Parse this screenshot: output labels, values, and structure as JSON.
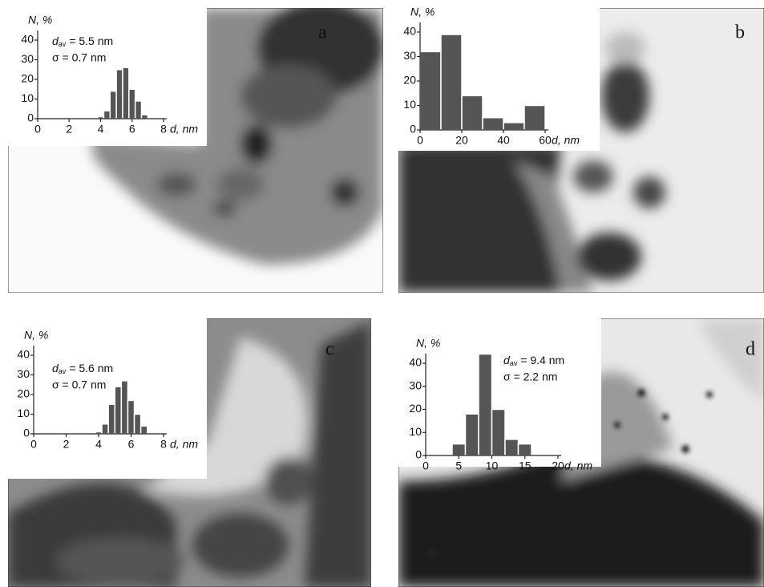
{
  "chart_data": [
    {
      "type": "histogram",
      "panel": "a",
      "ylabel": "N, %",
      "xlabel": "d, nm",
      "annotation": {
        "symbol": "d",
        "subscript": "av",
        "mean": "= 5.5 nm",
        "sigma": "σ = 0.7 nm"
      },
      "bins": [
        3.8,
        4.2,
        4.6,
        5.0,
        5.4,
        5.8,
        6.2,
        6.6,
        7.0
      ],
      "values": [
        1,
        4,
        14,
        25,
        26,
        15,
        9,
        2
      ],
      "color": "#555555",
      "xlim": [
        0,
        8
      ],
      "xticks": [
        0,
        2,
        4,
        6,
        8
      ],
      "ylim": [
        0,
        40
      ],
      "yticks": [
        0,
        10,
        20,
        30,
        40
      ]
    },
    {
      "type": "histogram",
      "panel": "b",
      "ylabel": "N, %",
      "xlabel": "d, nm",
      "bins": [
        0,
        10,
        20,
        30,
        40,
        50,
        60
      ],
      "values": [
        32,
        39,
        14,
        5,
        3,
        10
      ],
      "color": "#555555",
      "xlim": [
        0,
        60
      ],
      "xticks": [
        0,
        20,
        40,
        60
      ],
      "ylim": [
        0,
        40
      ],
      "yticks": [
        0,
        10,
        20,
        30,
        40
      ]
    },
    {
      "type": "histogram",
      "panel": "c",
      "ylabel": "N, %",
      "xlabel": "d, nm",
      "annotation": {
        "symbol": "d",
        "subscript": "av",
        "mean": "= 5.6 nm",
        "sigma": "σ = 0.7 nm"
      },
      "bins": [
        3.8,
        4.2,
        4.6,
        5.0,
        5.4,
        5.8,
        6.2,
        6.6,
        7.0
      ],
      "values": [
        1,
        5,
        15,
        24,
        27,
        17,
        10,
        4
      ],
      "color": "#555555",
      "xlim": [
        0,
        8
      ],
      "xticks": [
        0,
        2,
        4,
        6,
        8
      ],
      "ylim": [
        0,
        40
      ],
      "yticks": [
        0,
        10,
        20,
        30,
        40
      ]
    },
    {
      "type": "histogram",
      "panel": "d",
      "ylabel": "N, %",
      "xlabel": "d, nm",
      "annotation": {
        "symbol": "d",
        "subscript": "av",
        "mean": "= 9.4 nm",
        "sigma": "σ = 2.2 nm"
      },
      "bins": [
        4,
        6,
        8,
        10,
        12,
        14,
        16
      ],
      "values": [
        5,
        18,
        44,
        20,
        7,
        5
      ],
      "color": "#555555",
      "xlim": [
        0,
        20
      ],
      "xticks": [
        0,
        5,
        10,
        15,
        20
      ],
      "ylim": [
        0,
        40
      ],
      "yticks": [
        0,
        10,
        20,
        30,
        40
      ]
    }
  ]
}
